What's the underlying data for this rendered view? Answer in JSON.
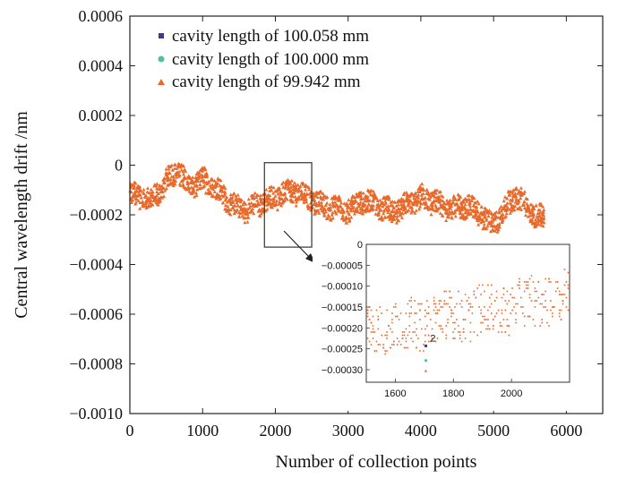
{
  "chart_data": {
    "type": "scatter",
    "title": "",
    "xlabel": "Number of collection points",
    "ylabel": "Central wavelength drift /nm",
    "xlim": [
      0,
      6500
    ],
    "ylim": [
      -0.001,
      0.0006
    ],
    "x_ticks": [
      0,
      1000,
      2000,
      3000,
      4000,
      5000,
      6000
    ],
    "x_tick_labels": [
      "0",
      "1000",
      "2000",
      "3000",
      "4000",
      "5000",
      "6000"
    ],
    "y_ticks": [
      -0.001,
      -0.0008,
      -0.0006,
      -0.0004,
      -0.0002,
      0,
      0.0002,
      0.0004,
      0.0006
    ],
    "y_tick_labels": [
      "−0.0010",
      "−0.0008",
      "−0.0006",
      "−0.0004",
      "−0.0002",
      "0",
      "0.0002",
      "0.0004",
      "0.0006"
    ],
    "series": [
      {
        "name": "cavity length of 100.058 mm",
        "marker": "square",
        "color": "#3b3a8f"
      },
      {
        "name": "cavity length of 100.000 mm",
        "marker": "circle",
        "color": "#4fc1a2"
      },
      {
        "name": "cavity length of 99.942 mm",
        "marker": "triangle",
        "color": "#e8692a"
      }
    ],
    "data_range_x": [
      0,
      5700
    ],
    "trend": {
      "x": [
        0,
        300,
        500,
        650,
        800,
        1000,
        1200,
        1400,
        1600,
        1800,
        2000,
        2200,
        2400,
        2600,
        2800,
        3000,
        3200,
        3400,
        3600,
        3800,
        4000,
        4200,
        4400,
        4600,
        4800,
        4950,
        5100,
        5300,
        5500,
        5700
      ],
      "y": [
        -0.00012,
        -0.00014,
        -6e-05,
        -2e-05,
        -8e-05,
        -6e-05,
        -0.0001,
        -0.00016,
        -0.00018,
        -0.00015,
        -0.00013,
        -0.0001,
        -0.00012,
        -0.00016,
        -0.00017,
        -0.00018,
        -0.00014,
        -0.00016,
        -0.00019,
        -0.00016,
        -0.00013,
        -0.00015,
        -0.00018,
        -0.00016,
        -0.00019,
        -0.00024,
        -0.0002,
        -0.00012,
        -0.00019,
        -0.00022
      ]
    },
    "highlight_box": {
      "x_range": [
        1850,
        2500
      ],
      "y_range": [
        -0.00033,
        1e-05
      ]
    },
    "inset": {
      "xlim": [
        1500,
        2200
      ],
      "ylim": [
        -0.00033,
        0.0
      ],
      "x_ticks": [
        1600,
        1800,
        2000
      ],
      "x_tick_labels": [
        "1600",
        "1800",
        "2000"
      ],
      "y_ticks": [
        0,
        -5e-05,
        -0.0001,
        -0.00015,
        -0.0002,
        -0.00025,
        -0.0003
      ],
      "y_tick_labels": [
        "0",
        "−0.00005",
        "−0.00010",
        "−0.00015",
        "−0.00020",
        "−0.00025",
        "−0.00030"
      ],
      "annotation_number": "2"
    }
  }
}
